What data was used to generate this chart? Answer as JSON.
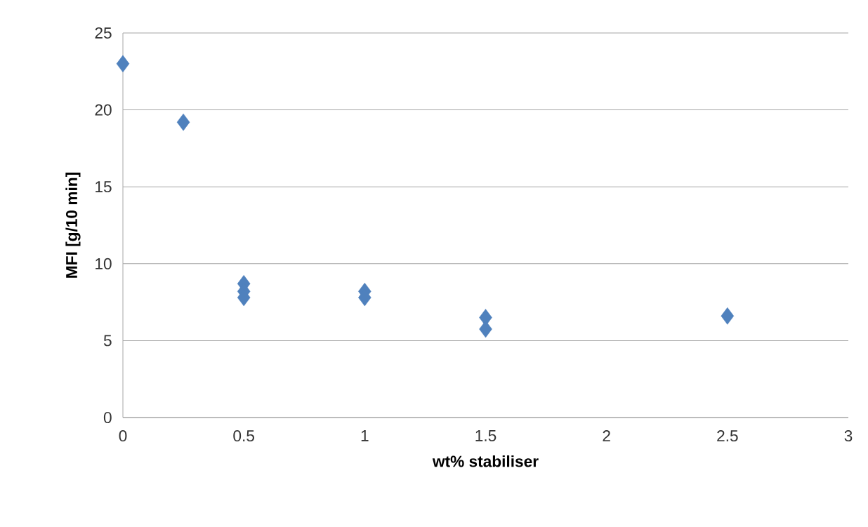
{
  "chart_data": {
    "type": "scatter",
    "xlabel": "wt% stabiliser",
    "ylabel": "MFI [g/10 min]",
    "x": [
      0,
      0.25,
      0.5,
      0.5,
      0.5,
      1,
      1,
      1.5,
      1.5,
      2.5
    ],
    "values": [
      23,
      19.2,
      8.7,
      8.2,
      7.8,
      8.2,
      7.8,
      6.5,
      5.75,
      6.6
    ],
    "color": "#4f81bd",
    "marker": "diamond",
    "xlim": [
      0,
      3
    ],
    "xticks": [
      0,
      0.5,
      1,
      1.5,
      2,
      2.5,
      3
    ],
    "ylim": [
      0,
      25
    ],
    "yticks": [
      0,
      5,
      10,
      15,
      20,
      25
    ],
    "grid": "y"
  }
}
